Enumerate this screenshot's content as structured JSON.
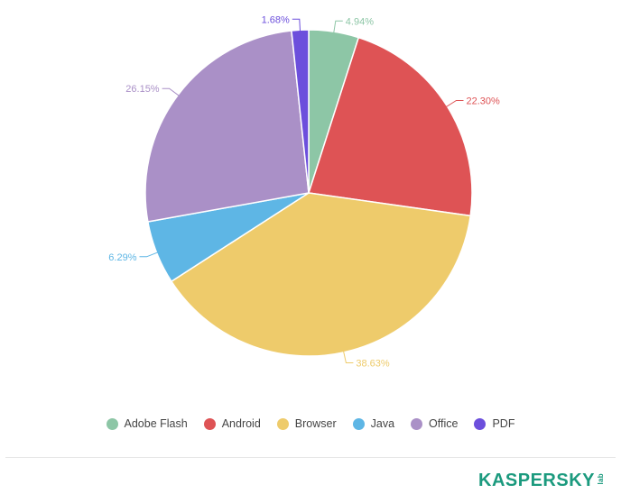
{
  "chart_data": {
    "type": "pie",
    "slices": [
      {
        "name": "Adobe Flash",
        "value": 4.94,
        "label": "4.94%",
        "color": "#8dc6a6"
      },
      {
        "name": "Android",
        "value": 22.3,
        "label": "22.30%",
        "color": "#de5355"
      },
      {
        "name": "Browser",
        "value": 38.63,
        "label": "38.63%",
        "color": "#eecb6b"
      },
      {
        "name": "Java",
        "value": 6.29,
        "label": "6.29%",
        "color": "#5eb6e5"
      },
      {
        "name": "Office",
        "value": 26.15,
        "label": "26.15%",
        "color": "#aa90c7"
      },
      {
        "name": "PDF",
        "value": 1.68,
        "label": "1.68%",
        "color": "#6c4fdc"
      }
    ],
    "start_angle": "12 o'clock",
    "direction": "clockwise",
    "legend_placement": "bottom-center"
  },
  "brand": {
    "name": "KASPERSKY",
    "sub": "lab",
    "color": "#1b9a7e"
  }
}
